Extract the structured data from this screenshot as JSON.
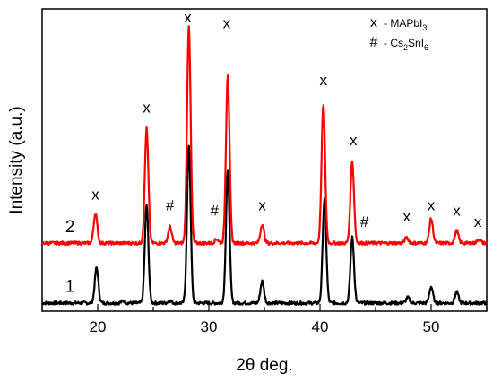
{
  "chart_data": {
    "type": "line",
    "title": "",
    "xlabel": "2θ deg.",
    "ylabel": "Intensity (a.u.)",
    "xlim": [
      15,
      55
    ],
    "xticks": [
      20,
      30,
      40,
      50
    ],
    "xtick_labels": [
      "20",
      "30",
      "40",
      "50"
    ],
    "y_tick_labels": false,
    "grid": false,
    "legend": {
      "placement": "top-right",
      "entries": [
        {
          "symbol": "x",
          "label": "- MAPbI",
          "sub": "3"
        },
        {
          "symbol": "#",
          "label": "- Cs",
          "sub": "2",
          "label2": "SnI",
          "sub2": "6"
        }
      ]
    },
    "series": [
      {
        "name": "1",
        "color": "#000000",
        "baseline": 0,
        "noise": 0.006,
        "peaks": [
          {
            "x": 19.9,
            "y": 0.13
          },
          {
            "x": 24.4,
            "y": 0.36
          },
          {
            "x": 28.2,
            "y": 0.58
          },
          {
            "x": 31.7,
            "y": 0.48
          },
          {
            "x": 34.8,
            "y": 0.08
          },
          {
            "x": 40.4,
            "y": 0.38
          },
          {
            "x": 42.9,
            "y": 0.24
          },
          {
            "x": 47.9,
            "y": 0.02
          },
          {
            "x": 50.0,
            "y": 0.06
          },
          {
            "x": 52.3,
            "y": 0.04
          },
          {
            "x": 26.5,
            "y": 0.008
          },
          {
            "x": 22.3,
            "y": 0.008
          }
        ]
      },
      {
        "name": "2",
        "color": "#ff0000",
        "baseline": 0.22,
        "noise": 0.006,
        "peaks": [
          {
            "x": 19.8,
            "y": 0.11
          },
          {
            "x": 24.4,
            "y": 0.42
          },
          {
            "x": 26.5,
            "y": 0.06
          },
          {
            "x": 28.2,
            "y": 0.8
          },
          {
            "x": 30.7,
            "y": 0.015
          },
          {
            "x": 31.7,
            "y": 0.62
          },
          {
            "x": 34.8,
            "y": 0.07
          },
          {
            "x": 40.3,
            "y": 0.51
          },
          {
            "x": 42.9,
            "y": 0.3
          },
          {
            "x": 47.8,
            "y": 0.02
          },
          {
            "x": 50.0,
            "y": 0.09
          },
          {
            "x": 52.3,
            "y": 0.045
          },
          {
            "x": 54.3,
            "y": 0.015
          }
        ]
      }
    ],
    "peak_markers": [
      {
        "x": 19.8,
        "symbol": "x",
        "y": 0.38
      },
      {
        "x": 24.4,
        "symbol": "x",
        "y": 0.7
      },
      {
        "x": 26.5,
        "symbol": "#",
        "y": 0.34
      },
      {
        "x": 28.1,
        "symbol": "x",
        "y": 1.03
      },
      {
        "x": 30.5,
        "symbol": "#",
        "y": 0.32
      },
      {
        "x": 31.6,
        "symbol": "x",
        "y": 1.01
      },
      {
        "x": 34.8,
        "symbol": "x",
        "y": 0.34
      },
      {
        "x": 40.3,
        "symbol": "x",
        "y": 0.8
      },
      {
        "x": 43.0,
        "symbol": "x",
        "y": 0.58
      },
      {
        "x": 44.0,
        "symbol": "#",
        "y": 0.28
      },
      {
        "x": 47.8,
        "symbol": "x",
        "y": 0.3
      },
      {
        "x": 50.0,
        "symbol": "x",
        "y": 0.34
      },
      {
        "x": 52.3,
        "symbol": "x",
        "y": 0.32
      },
      {
        "x": 54.2,
        "symbol": "x",
        "y": 0.28
      }
    ],
    "curve_labels": [
      {
        "text": "1",
        "x": 17.5,
        "y": 0.04
      },
      {
        "text": "2",
        "x": 17.5,
        "y": 0.26
      }
    ]
  }
}
